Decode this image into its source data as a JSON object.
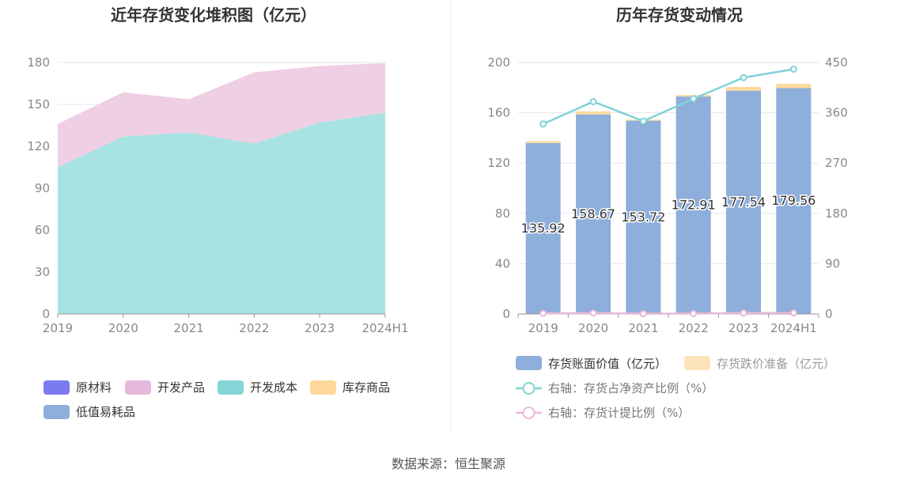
{
  "source": "数据来源：恒生聚源",
  "chart_data": [
    {
      "type": "area",
      "title": "近年存货变化堆积图（亿元）",
      "categories": [
        "2019",
        "2020",
        "2021",
        "2022",
        "2023",
        "2024H1"
      ],
      "y_ticks": [
        "0",
        "30",
        "60",
        "90",
        "120",
        "150",
        "180"
      ],
      "ylim": [
        0,
        180
      ],
      "stacked": true,
      "grid": true,
      "legend_position": "bottom-left",
      "legend": [
        {
          "name": "原材料",
          "color": "#7b7bef"
        },
        {
          "name": "开发产品",
          "color": "#e6b9da"
        },
        {
          "name": "开发成本",
          "color": "#86d6d7"
        },
        {
          "name": "库存商品",
          "color": "#ffd89a"
        },
        {
          "name": "低值易耗品",
          "color": "#8eaedb"
        }
      ],
      "series": [
        {
          "name": "开发成本",
          "values": [
            105,
            127,
            130,
            122,
            137,
            144
          ],
          "color": "#a8e2e3"
        },
        {
          "name": "开发产品",
          "values": [
            31,
            31.7,
            23.7,
            50.9,
            40.5,
            35.6
          ],
          "color": "#efcfe3"
        }
      ]
    },
    {
      "type": "bar",
      "title": "历年存货变动情况",
      "categories": [
        "2019",
        "2020",
        "2021",
        "2022",
        "2023",
        "2024H1"
      ],
      "y_left_ticks": [
        "0",
        "40",
        "80",
        "120",
        "160",
        "200"
      ],
      "y_right_ticks": [
        "0",
        "90",
        "180",
        "270",
        "360",
        "450"
      ],
      "ylim_left": [
        0,
        200
      ],
      "ylim_right": [
        0,
        450
      ],
      "grid": true,
      "legend_position": "bottom",
      "bars": [
        {
          "name": "存货账面价值（亿元）",
          "values": [
            135.92,
            158.67,
            153.72,
            172.91,
            177.54,
            179.56
          ],
          "labels": [
            "135.92",
            "158.67",
            "153.72",
            "172.91",
            "177.54",
            "179.56"
          ],
          "color": "#8eaedb"
        },
        {
          "name": "存货跌价准备（亿元）",
          "values": [
            1.5,
            2.5,
            0.8,
            1.2,
            3.0,
            3.5
          ],
          "color": "#fde3b8"
        }
      ],
      "lines": [
        {
          "name": "右轴：存货占净资产比例（%）",
          "values": [
            340,
            380,
            345,
            385,
            423,
            438
          ],
          "color": "#7fd3d6"
        },
        {
          "name": "右轴：存货计提比例（%）",
          "values": [
            1.1,
            1.6,
            0.5,
            0.7,
            1.7,
            1.9
          ],
          "color": "#e8b9d6"
        }
      ]
    }
  ]
}
